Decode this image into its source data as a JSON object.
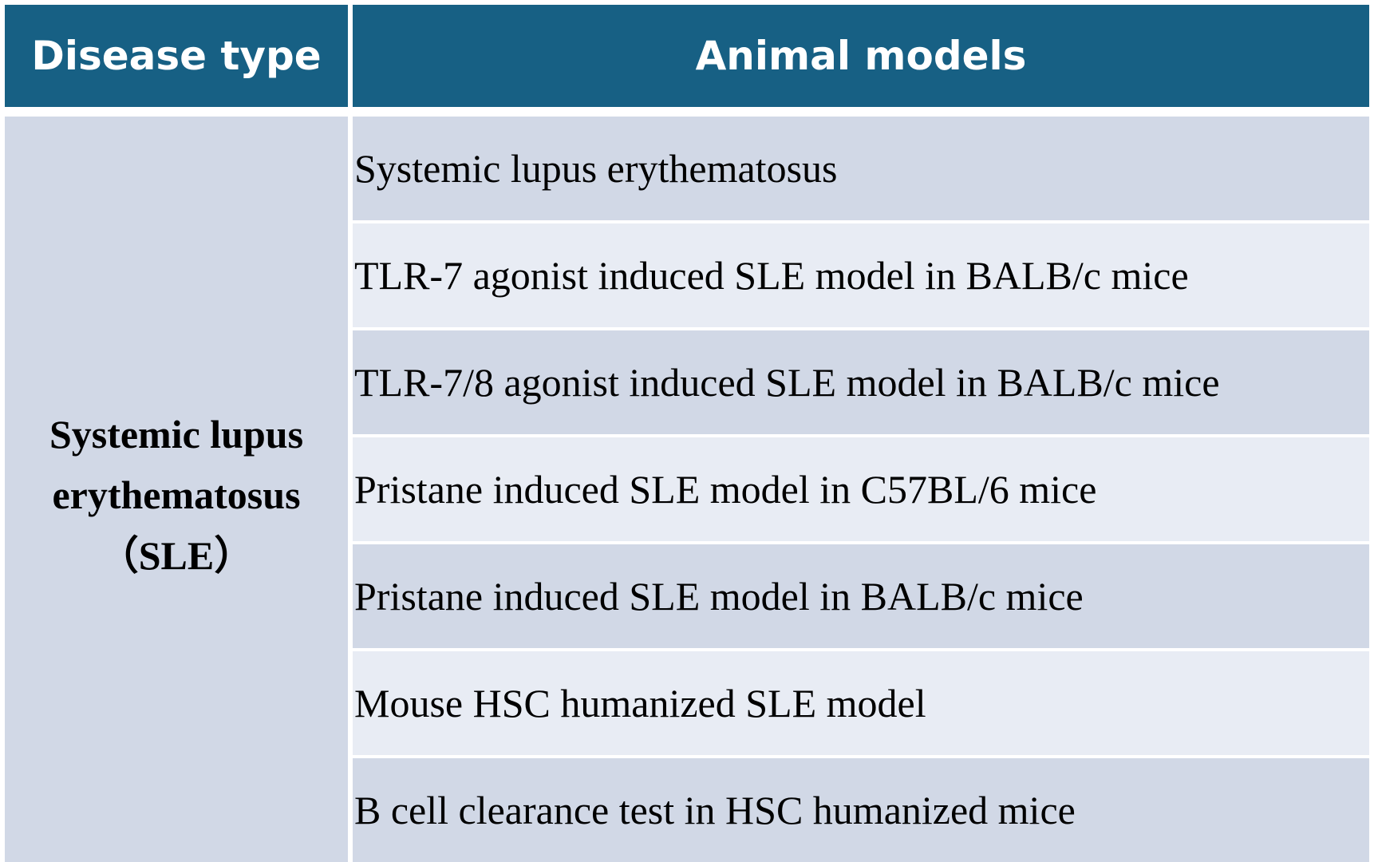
{
  "table": {
    "headers": {
      "disease": "Disease type",
      "models": "Animal models"
    },
    "disease": {
      "line1": "Systemic lupus",
      "line2": "erythematosus",
      "line3": "（SLE）"
    },
    "models": [
      "Systemic lupus erythematosus",
      "TLR-7 agonist induced SLE model in BALB/c mice",
      "TLR-7/8 agonist induced SLE model in BALB/c mice",
      "Pristane induced SLE model in C57BL/6 mice",
      "Pristane induced SLE model in BALB/c mice",
      "Mouse HSC humanized SLE model",
      "B cell clearance test in HSC humanized mice"
    ]
  },
  "colors": {
    "header_bg": "#176084",
    "row_dark": "#d1d8e6",
    "row_light": "#e8ecf4"
  }
}
